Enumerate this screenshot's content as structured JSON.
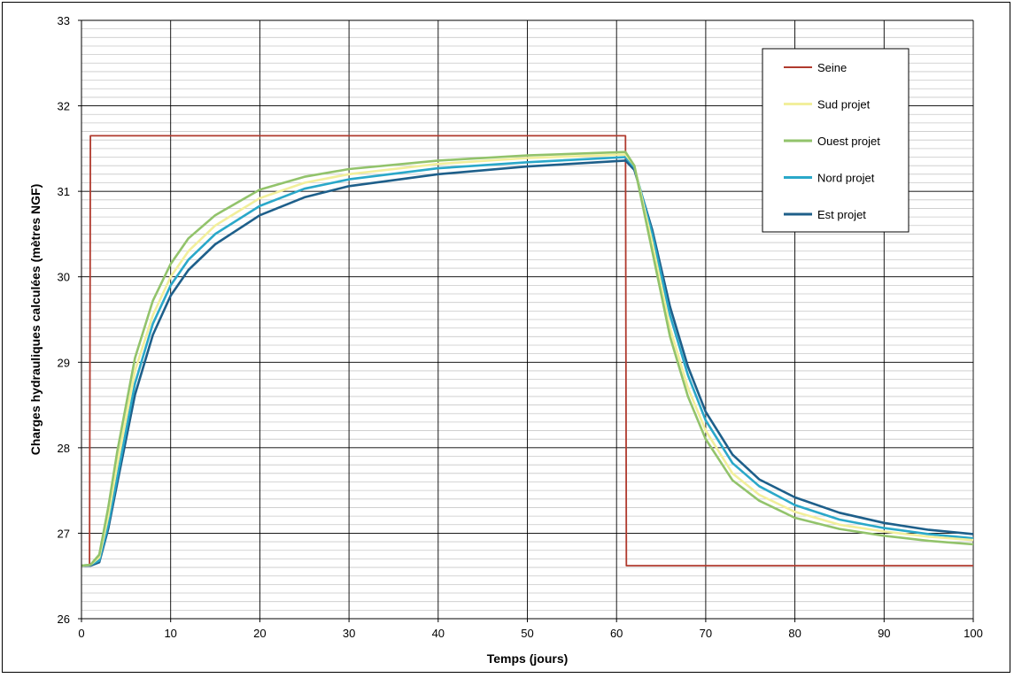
{
  "chart_data": {
    "type": "line",
    "title": "",
    "xlabel": "Temps (jours)",
    "ylabel": "Charges hydrauliques calculées (mètres NGF)",
    "xlim": [
      0,
      100
    ],
    "ylim": [
      26,
      33
    ],
    "xticks": [
      "0",
      "10",
      "20",
      "30",
      "40",
      "50",
      "60",
      "70",
      "80",
      "90",
      "100"
    ],
    "yticks": [
      "26",
      "27",
      "28",
      "29",
      "30",
      "31",
      "32",
      "33"
    ],
    "grid": true,
    "legend_position": "top-right",
    "series": [
      {
        "name": "Seine",
        "color": "#b03a2e",
        "x": [
          0,
          0.9,
          1,
          61,
          61.1,
          100
        ],
        "y": [
          26.62,
          26.62,
          31.65,
          31.65,
          26.62,
          26.62
        ]
      },
      {
        "name": "Sud projet",
        "color": "#f2ef9c",
        "x": [
          0,
          1,
          2,
          3,
          4,
          6,
          8,
          10,
          12,
          15,
          20,
          25,
          30,
          40,
          50,
          61,
          62,
          64,
          66,
          68,
          70,
          73,
          76,
          80,
          85,
          90,
          95,
          100
        ],
        "y": [
          26.62,
          26.63,
          26.72,
          27.2,
          27.8,
          28.9,
          29.55,
          30.0,
          30.3,
          30.6,
          30.92,
          31.1,
          31.2,
          31.32,
          31.39,
          31.43,
          31.3,
          30.4,
          29.4,
          28.7,
          28.2,
          27.7,
          27.45,
          27.25,
          27.1,
          27.02,
          26.96,
          26.92
        ]
      },
      {
        "name": "Ouest projet",
        "color": "#92c36b",
        "x": [
          0,
          1,
          2,
          3,
          4,
          6,
          8,
          10,
          12,
          15,
          20,
          25,
          30,
          40,
          50,
          61,
          62,
          64,
          66,
          68,
          70,
          73,
          76,
          80,
          85,
          90,
          95,
          100
        ],
        "y": [
          26.62,
          26.63,
          26.75,
          27.3,
          27.95,
          29.05,
          29.72,
          30.15,
          30.45,
          30.72,
          31.02,
          31.17,
          31.26,
          31.36,
          31.42,
          31.46,
          31.3,
          30.3,
          29.3,
          28.6,
          28.1,
          27.62,
          27.38,
          27.18,
          27.05,
          26.97,
          26.91,
          26.87
        ]
      },
      {
        "name": "Nord projet",
        "color": "#2aa8c9",
        "x": [
          0,
          1,
          2,
          3,
          4,
          6,
          8,
          10,
          12,
          15,
          20,
          25,
          30,
          40,
          50,
          61,
          62,
          64,
          66,
          68,
          70,
          73,
          76,
          80,
          85,
          90,
          95,
          100
        ],
        "y": [
          26.62,
          26.63,
          26.68,
          27.1,
          27.65,
          28.75,
          29.45,
          29.9,
          30.2,
          30.5,
          30.83,
          31.03,
          31.14,
          31.27,
          31.34,
          31.4,
          31.28,
          30.5,
          29.55,
          28.85,
          28.32,
          27.82,
          27.55,
          27.33,
          27.16,
          27.06,
          26.99,
          26.94
        ]
      },
      {
        "name": "Est projet",
        "color": "#1e5f8a",
        "x": [
          0,
          1,
          2,
          3,
          4,
          6,
          8,
          10,
          12,
          15,
          20,
          25,
          30,
          40,
          50,
          61,
          62,
          64,
          66,
          68,
          70,
          73,
          76,
          80,
          85,
          90,
          95,
          100
        ],
        "y": [
          26.62,
          26.62,
          26.66,
          27.05,
          27.58,
          28.62,
          29.32,
          29.78,
          30.08,
          30.38,
          30.72,
          30.93,
          31.06,
          31.2,
          31.29,
          31.36,
          31.25,
          30.55,
          29.65,
          28.95,
          28.42,
          27.92,
          27.63,
          27.42,
          27.24,
          27.12,
          27.04,
          26.99
        ]
      }
    ]
  }
}
